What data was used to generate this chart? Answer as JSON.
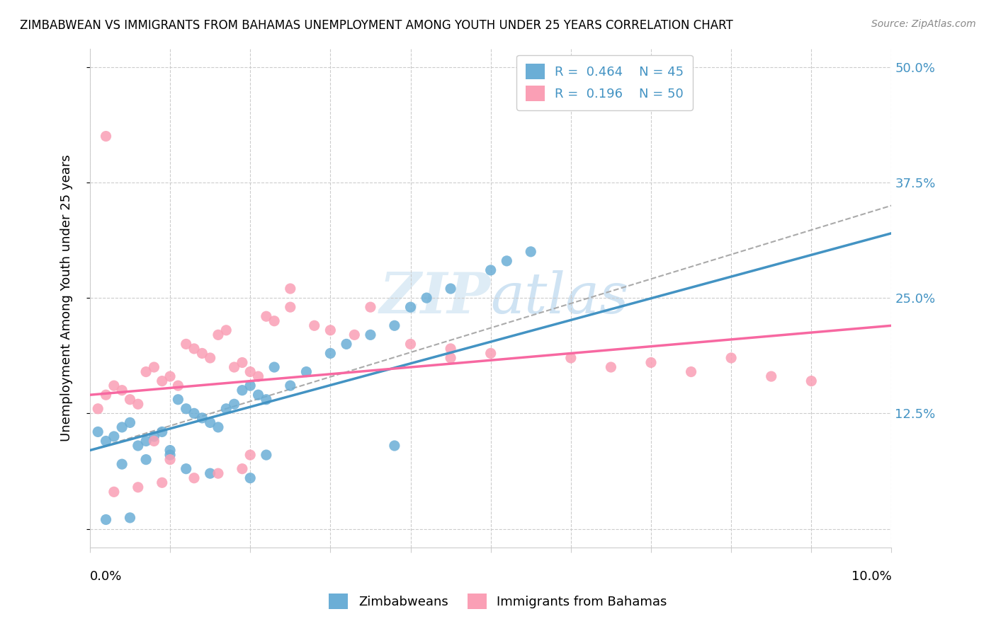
{
  "title": "ZIMBABWEAN VS IMMIGRANTS FROM BAHAMAS UNEMPLOYMENT AMONG YOUTH UNDER 25 YEARS CORRELATION CHART",
  "source": "Source: ZipAtlas.com",
  "ylabel": "Unemployment Among Youth under 25 years",
  "xlim": [
    0.0,
    0.1
  ],
  "ylim": [
    -0.02,
    0.52
  ],
  "yticks": [
    0.0,
    0.125,
    0.25,
    0.375,
    0.5
  ],
  "ytick_labels": [
    "",
    "12.5%",
    "25.0%",
    "37.5%",
    "50.0%"
  ],
  "legend_R_blue": "0.464",
  "legend_N_blue": "45",
  "legend_R_pink": "0.196",
  "legend_N_pink": "50",
  "blue_color": "#6baed6",
  "pink_color": "#fa9fb5",
  "blue_line_color": "#4393c3",
  "pink_line_color": "#f768a1",
  "dashed_line_color": "#aaaaaa",
  "watermark_zip": "ZIP",
  "watermark_atlas": "atlas",
  "blue_scatter_x": [
    0.001,
    0.002,
    0.003,
    0.004,
    0.005,
    0.006,
    0.007,
    0.008,
    0.009,
    0.01,
    0.011,
    0.012,
    0.013,
    0.014,
    0.015,
    0.016,
    0.017,
    0.018,
    0.019,
    0.02,
    0.021,
    0.022,
    0.023,
    0.025,
    0.027,
    0.03,
    0.032,
    0.035,
    0.038,
    0.04,
    0.042,
    0.045,
    0.05,
    0.055,
    0.004,
    0.007,
    0.01,
    0.012,
    0.015,
    0.02,
    0.002,
    0.005,
    0.022,
    0.038,
    0.052
  ],
  "blue_scatter_y": [
    0.105,
    0.095,
    0.1,
    0.11,
    0.115,
    0.09,
    0.095,
    0.1,
    0.105,
    0.085,
    0.14,
    0.13,
    0.125,
    0.12,
    0.115,
    0.11,
    0.13,
    0.135,
    0.15,
    0.155,
    0.145,
    0.14,
    0.175,
    0.155,
    0.17,
    0.19,
    0.2,
    0.21,
    0.22,
    0.24,
    0.25,
    0.26,
    0.28,
    0.3,
    0.07,
    0.075,
    0.08,
    0.065,
    0.06,
    0.055,
    0.01,
    0.012,
    0.08,
    0.09,
    0.29
  ],
  "pink_scatter_x": [
    0.001,
    0.002,
    0.003,
    0.004,
    0.005,
    0.006,
    0.007,
    0.008,
    0.009,
    0.01,
    0.011,
    0.012,
    0.013,
    0.014,
    0.015,
    0.016,
    0.017,
    0.018,
    0.019,
    0.02,
    0.021,
    0.022,
    0.023,
    0.025,
    0.028,
    0.03,
    0.033,
    0.035,
    0.04,
    0.045,
    0.05,
    0.06,
    0.07,
    0.08,
    0.003,
    0.006,
    0.009,
    0.013,
    0.016,
    0.019,
    0.002,
    0.008,
    0.025,
    0.045,
    0.065,
    0.075,
    0.085,
    0.09,
    0.01,
    0.02
  ],
  "pink_scatter_y": [
    0.13,
    0.145,
    0.155,
    0.15,
    0.14,
    0.135,
    0.17,
    0.175,
    0.16,
    0.165,
    0.155,
    0.2,
    0.195,
    0.19,
    0.185,
    0.21,
    0.215,
    0.175,
    0.18,
    0.17,
    0.165,
    0.23,
    0.225,
    0.24,
    0.22,
    0.215,
    0.21,
    0.24,
    0.2,
    0.195,
    0.19,
    0.185,
    0.18,
    0.185,
    0.04,
    0.045,
    0.05,
    0.055,
    0.06,
    0.065,
    0.425,
    0.095,
    0.26,
    0.185,
    0.175,
    0.17,
    0.165,
    0.16,
    0.075,
    0.08
  ],
  "blue_line_x": [
    0.0,
    0.1
  ],
  "blue_line_y": [
    0.085,
    0.32
  ],
  "pink_line_x": [
    0.0,
    0.1
  ],
  "pink_line_y": [
    0.145,
    0.22
  ],
  "dashed_line_x": [
    0.0,
    0.1
  ],
  "dashed_line_y": [
    0.085,
    0.35
  ]
}
